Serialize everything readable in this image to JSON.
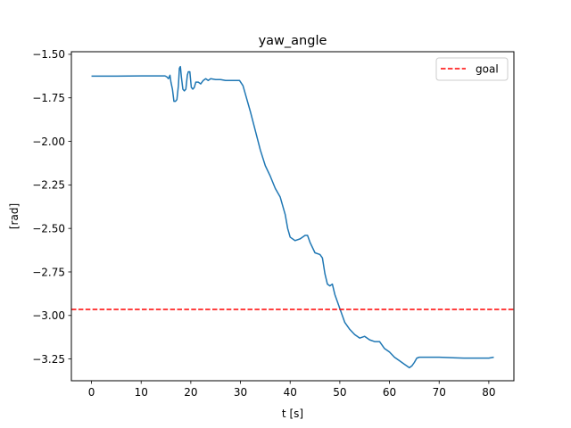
{
  "chart_data": {
    "type": "line",
    "title": "yaw_angle",
    "xlabel": "t [s]",
    "ylabel": "[rad]",
    "xlim": [
      -4.05,
      85.05
    ],
    "ylim": [
      -3.375,
      -1.485
    ],
    "xticks": [
      0,
      10,
      20,
      30,
      40,
      50,
      60,
      70,
      80
    ],
    "yticks": [
      -3.25,
      -3.0,
      -2.75,
      -2.5,
      -2.25,
      -2.0,
      -1.75,
      -1.5
    ],
    "ytick_labels": [
      "−3.25",
      "−3.00",
      "−2.75",
      "−2.50",
      "−2.25",
      "−2.00",
      "−1.75",
      "−1.50"
    ],
    "grid": false,
    "legend": {
      "placement": "top-right",
      "entries": [
        "goal"
      ]
    },
    "series": [
      {
        "color": "#1f77b4",
        "x": [
          0,
          5,
          10,
          14.8,
          15.2,
          15.5,
          15.8,
          16.0,
          16.3,
          16.6,
          16.9,
          17.2,
          17.5,
          17.7,
          17.9,
          18.1,
          18.4,
          18.7,
          19.0,
          19.3,
          19.5,
          19.8,
          20.1,
          20.4,
          20.7,
          21.0,
          21.5,
          22.0,
          22.5,
          23.0,
          23.5,
          24.0,
          25.0,
          26.0,
          27.0,
          28.0,
          29.0,
          29.8,
          30.5,
          31.0,
          32.0,
          33.0,
          34.0,
          35.0,
          36.0,
          37.0,
          38.0,
          39.0,
          39.5,
          40.0,
          41.0,
          42.0,
          43.0,
          43.5,
          44.0,
          45.0,
          46.0,
          46.5,
          47.0,
          47.5,
          48.0,
          48.5,
          49.0,
          49.5,
          50.0,
          51.0,
          52.0,
          53.0,
          54.0,
          55.0,
          56.0,
          57.0,
          58.0,
          59.0,
          60.0,
          61.0,
          62.0,
          63.0,
          64.0,
          64.5,
          65.0,
          65.5,
          66.0,
          70.0,
          75.0,
          80.0,
          81.0
        ],
        "y": [
          -1.625,
          -1.625,
          -1.624,
          -1.624,
          -1.63,
          -1.64,
          -1.62,
          -1.66,
          -1.7,
          -1.77,
          -1.77,
          -1.76,
          -1.68,
          -1.58,
          -1.57,
          -1.63,
          -1.7,
          -1.71,
          -1.7,
          -1.62,
          -1.6,
          -1.6,
          -1.69,
          -1.7,
          -1.69,
          -1.66,
          -1.66,
          -1.67,
          -1.65,
          -1.64,
          -1.65,
          -1.64,
          -1.645,
          -1.645,
          -1.65,
          -1.65,
          -1.65,
          -1.65,
          -1.68,
          -1.73,
          -1.83,
          -1.94,
          -2.05,
          -2.14,
          -2.2,
          -2.27,
          -2.32,
          -2.42,
          -2.5,
          -2.55,
          -2.57,
          -2.56,
          -2.54,
          -2.54,
          -2.58,
          -2.64,
          -2.65,
          -2.67,
          -2.76,
          -2.82,
          -2.83,
          -2.82,
          -2.88,
          -2.92,
          -2.96,
          -3.04,
          -3.08,
          -3.11,
          -3.13,
          -3.12,
          -3.14,
          -3.15,
          -3.15,
          -3.19,
          -3.21,
          -3.24,
          -3.26,
          -3.28,
          -3.3,
          -3.29,
          -3.27,
          -3.245,
          -3.24,
          -3.24,
          -3.245,
          -3.245,
          -3.24
        ]
      }
    ],
    "hlines": [
      {
        "name": "goal",
        "y": -2.965,
        "color": "#ff0000",
        "style": "dashed"
      }
    ]
  }
}
